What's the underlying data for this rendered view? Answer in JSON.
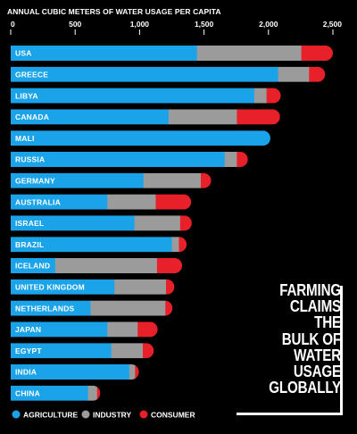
{
  "chart_data": {
    "type": "bar",
    "orientation": "horizontal",
    "stacked": true,
    "title": "ANNUAL CUBIC METERS OF WATER USAGE PER CAPITA",
    "xlabel": "",
    "ylabel": "",
    "xlim": [
      0,
      2500
    ],
    "x_ticks": [
      0,
      500,
      1000,
      1500,
      2000,
      2500
    ],
    "x_tick_labels": [
      "0",
      "500",
      "1,000",
      "1,500",
      "2,000",
      "2,500"
    ],
    "categories": [
      "USA",
      "GREECE",
      "LIBYA",
      "CANADA",
      "MALI",
      "RUSSIA",
      "GERMANY",
      "AUSTRALIA",
      "ISRAEL",
      "BRAZIL",
      "ICELAND",
      "UNITED KINGDOM",
      "NETHERLANDS",
      "JAPAN",
      "EGYPT",
      "INDIA",
      "CHINA"
    ],
    "series": [
      {
        "name": "AGRICULTURE",
        "color": "#1aa3e8",
        "values": [
          1445,
          2075,
          1890,
          1225,
          2015,
          1660,
          1030,
          750,
          960,
          1250,
          345,
          805,
          620,
          750,
          780,
          920,
          600
        ]
      },
      {
        "name": "INDUSTRY",
        "color": "#9b9b9b",
        "values": [
          810,
          240,
          95,
          530,
          0,
          95,
          445,
          375,
          355,
          55,
          790,
          400,
          580,
          235,
          245,
          45,
          70
        ]
      },
      {
        "name": "CONSUMER",
        "color": "#e8202a",
        "values": [
          245,
          125,
          110,
          335,
          0,
          85,
          80,
          275,
          90,
          60,
          195,
          65,
          55,
          155,
          85,
          30,
          25
        ]
      }
    ],
    "legend_position": "bottom-left",
    "grid": false
  },
  "headline": {
    "lines": [
      "FARMING",
      "CLAIMS",
      "THE",
      "BULK OF",
      "WATER",
      "USAGE",
      "GLOBALLY"
    ]
  }
}
